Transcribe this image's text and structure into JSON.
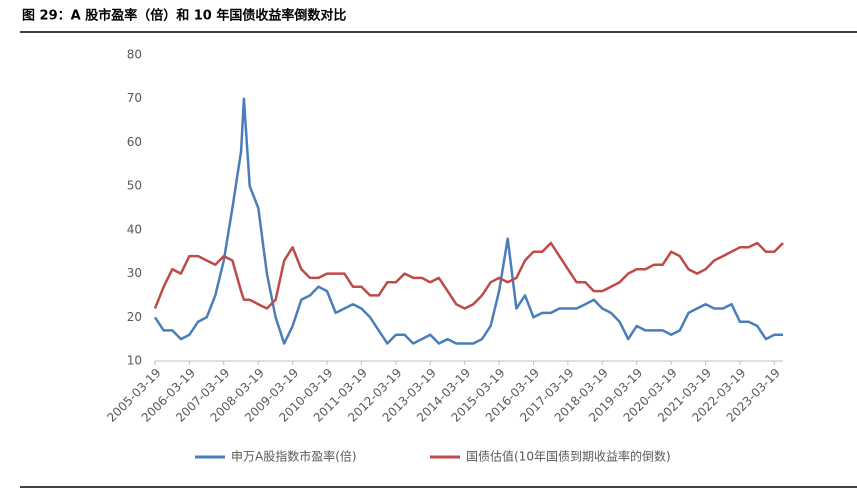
{
  "title": "图 29：A 股市盈率（倍）和 10 年国债收益率倒数对比",
  "chart_data": {
    "type": "line",
    "x": [
      "2005-03-19",
      "2005-06-19",
      "2005-09-19",
      "2005-12-19",
      "2006-03-19",
      "2006-06-19",
      "2006-09-19",
      "2006-12-19",
      "2007-03-19",
      "2007-06-19",
      "2007-09-19",
      "2007-10-19",
      "2007-12-19",
      "2008-03-19",
      "2008-06-19",
      "2008-09-19",
      "2008-12-19",
      "2009-03-19",
      "2009-06-19",
      "2009-09-19",
      "2009-12-19",
      "2010-03-19",
      "2010-06-19",
      "2010-09-19",
      "2010-12-19",
      "2011-03-19",
      "2011-06-19",
      "2011-09-19",
      "2011-12-19",
      "2012-03-19",
      "2012-06-19",
      "2012-09-19",
      "2012-12-19",
      "2013-03-19",
      "2013-06-19",
      "2013-09-19",
      "2013-12-19",
      "2014-03-19",
      "2014-06-19",
      "2014-09-19",
      "2014-12-19",
      "2015-03-19",
      "2015-06-19",
      "2015-09-19",
      "2015-12-19",
      "2016-03-19",
      "2016-06-19",
      "2016-09-19",
      "2016-12-19",
      "2017-03-19",
      "2017-06-19",
      "2017-09-19",
      "2017-12-19",
      "2018-03-19",
      "2018-06-19",
      "2018-09-19",
      "2018-12-19",
      "2019-03-19",
      "2019-06-19",
      "2019-09-19",
      "2019-12-19",
      "2020-03-19",
      "2020-06-19",
      "2020-09-19",
      "2020-12-19",
      "2021-03-19",
      "2021-06-19",
      "2021-09-19",
      "2021-12-19",
      "2022-03-19",
      "2022-06-19",
      "2022-09-19",
      "2022-12-19",
      "2023-03-19",
      "2023-06-19"
    ],
    "series": [
      {
        "name": "申万A股指数市盈率(倍)",
        "color": "#4a7ebb",
        "values": [
          20,
          17,
          17,
          15,
          16,
          19,
          20,
          25,
          33,
          45,
          58,
          70,
          50,
          45,
          30,
          20,
          14,
          18,
          24,
          25,
          27,
          26,
          21,
          22,
          23,
          22,
          20,
          17,
          14,
          16,
          16,
          14,
          15,
          16,
          14,
          15,
          14,
          14,
          14,
          15,
          18,
          26,
          38,
          22,
          25,
          20,
          21,
          21,
          22,
          22,
          22,
          23,
          24,
          22,
          21,
          19,
          15,
          18,
          17,
          17,
          17,
          16,
          17,
          21,
          22,
          23,
          22,
          22,
          23,
          19,
          19,
          18,
          15,
          16,
          16
        ]
      },
      {
        "name": "国债估值(10年国债到期收益率的倒数)",
        "color": "#be4b48",
        "values": [
          22,
          27,
          31,
          30,
          34,
          34,
          33,
          32,
          34,
          33,
          26,
          24,
          24,
          23,
          22,
          24,
          33,
          36,
          31,
          29,
          29,
          30,
          30,
          30,
          27,
          27,
          25,
          25,
          28,
          28,
          30,
          29,
          29,
          28,
          29,
          26,
          23,
          22,
          23,
          25,
          28,
          29,
          28,
          29,
          33,
          35,
          35,
          37,
          34,
          31,
          28,
          28,
          26,
          26,
          27,
          28,
          30,
          31,
          31,
          32,
          32,
          35,
          34,
          31,
          30,
          31,
          33,
          34,
          35,
          36,
          36,
          37,
          35,
          35,
          37
        ]
      }
    ],
    "xlim": [
      "2005-03-19",
      "2023-06-19"
    ],
    "xticks": [
      "2005-03-19",
      "2006-03-19",
      "2007-03-19",
      "2008-03-19",
      "2009-03-19",
      "2010-03-19",
      "2011-03-19",
      "2012-03-19",
      "2013-03-19",
      "2014-03-19",
      "2015-03-19",
      "2016-03-19",
      "2017-03-19",
      "2018-03-19",
      "2019-03-19",
      "2020-03-19",
      "2021-03-19",
      "2022-03-19",
      "2023-03-19"
    ],
    "ylim": [
      10,
      80
    ],
    "yticks": [
      10,
      20,
      30,
      40,
      50,
      60,
      70,
      80
    ],
    "grid": false,
    "legend": "bottom"
  }
}
